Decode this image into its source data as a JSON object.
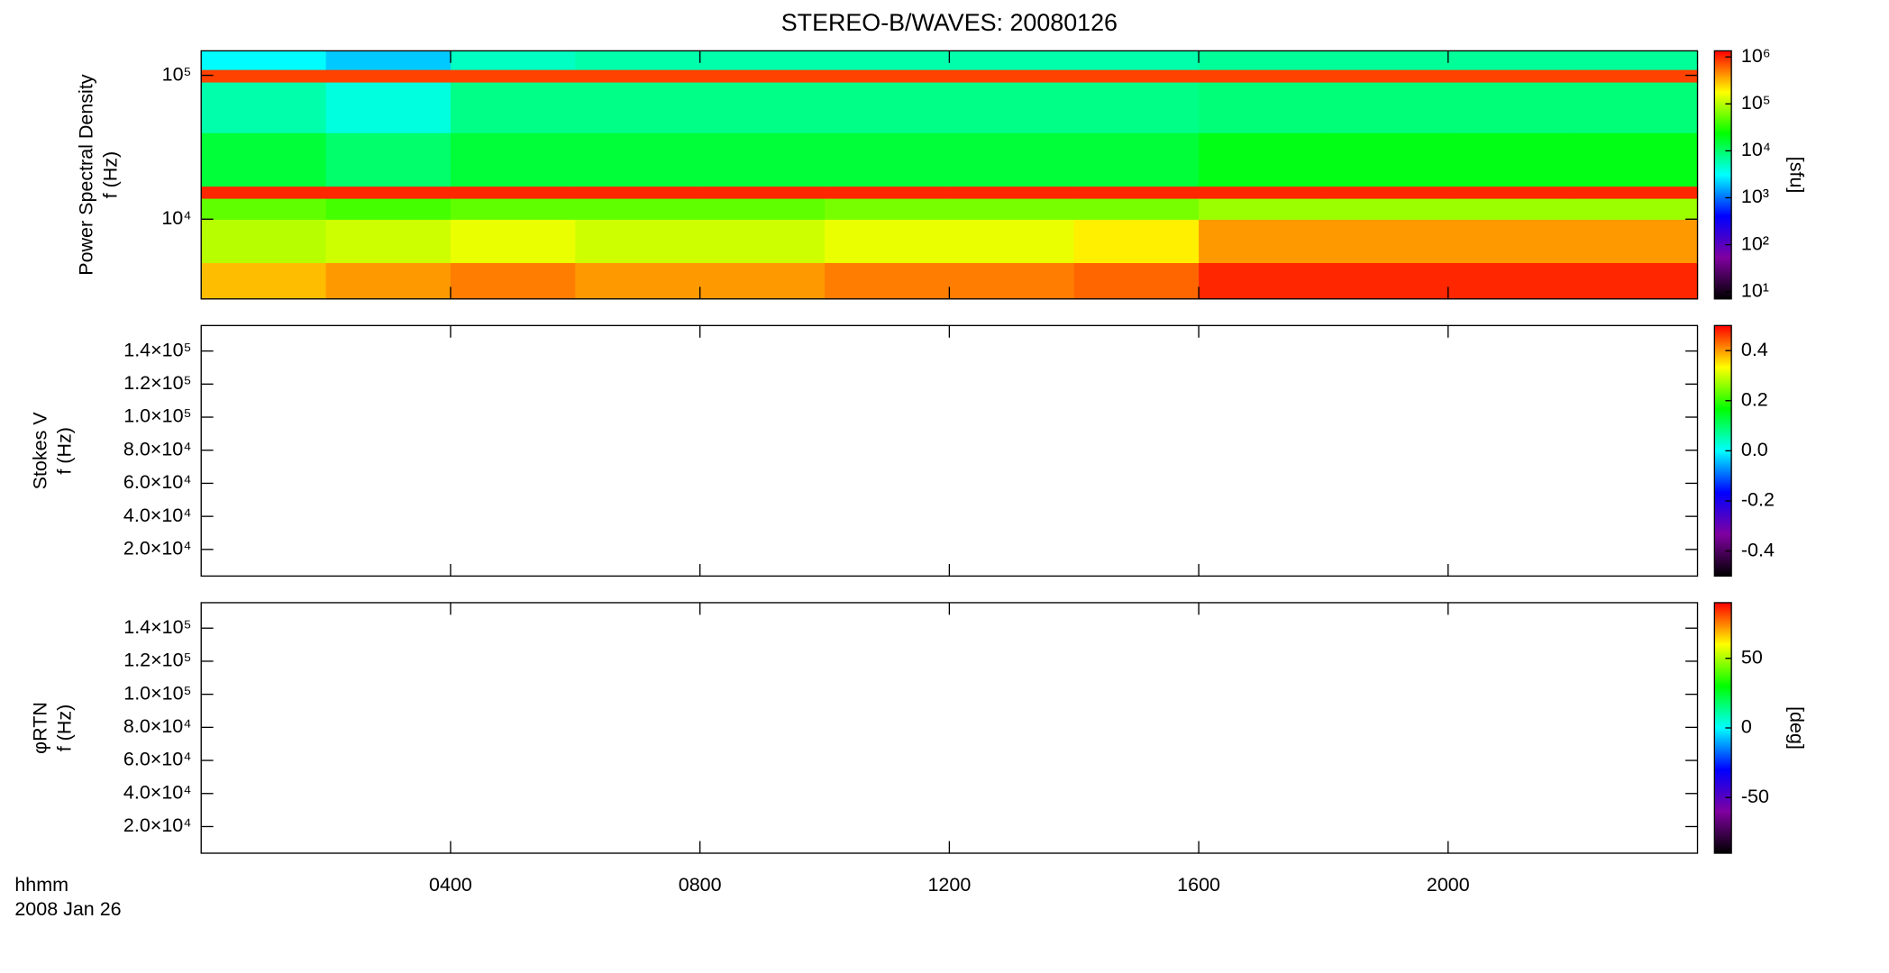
{
  "chart_data": [
    {
      "type": "heatmap",
      "title": "STEREO-B/WAVES: 20080126",
      "ylabel": [
        "Power Spectral Density",
        "f (Hz)"
      ],
      "ylog": true,
      "ylim": [
        2790,
        148000
      ],
      "yticks": [
        {
          "value": 10000,
          "label": "10⁴"
        },
        {
          "value": 100000,
          "label": "10⁵"
        }
      ],
      "x_bins": [
        0,
        2,
        4,
        6,
        8,
        10,
        12,
        14,
        16,
        18,
        20,
        22,
        24
      ],
      "y_bins": [
        2790,
        5000,
        10000,
        14000,
        17000,
        40000,
        90000,
        110000,
        148000
      ],
      "values": [
        [
          300000,
          400000,
          500000,
          400000,
          400000,
          500000,
          500000,
          600000,
          1000000,
          1000000,
          1000000,
          1000000
        ],
        [
          100000,
          120000,
          150000,
          120000,
          120000,
          150000,
          150000,
          200000,
          400000,
          400000,
          400000,
          400000
        ],
        [
          50000,
          40000,
          50000,
          50000,
          50000,
          60000,
          60000,
          60000,
          80000,
          80000,
          80000,
          80000
        ],
        [
          1000000,
          1000000,
          1000000,
          1000000,
          1000000,
          1000000,
          1000000,
          1000000,
          1000000,
          1000000,
          1000000,
          1000000
        ],
        [
          15000,
          10000,
          15000,
          15000,
          15000,
          15000,
          15000,
          15000,
          20000,
          20000,
          20000,
          20000
        ],
        [
          6000,
          4000,
          8000,
          8000,
          8000,
          8000,
          8000,
          8000,
          9000,
          9000,
          9000,
          9000
        ],
        [
          800000,
          800000,
          800000,
          800000,
          800000,
          800000,
          800000,
          800000,
          800000,
          800000,
          800000,
          800000
        ],
        [
          3000,
          2000,
          5000,
          6000,
          6000,
          6000,
          6000,
          6000,
          7000,
          7000,
          7000,
          7000
        ]
      ],
      "zlog": true,
      "zlim": [
        7,
        1350000
      ],
      "zticks": [
        {
          "value": 10,
          "label": "10¹"
        },
        {
          "value": 100,
          "label": "10²"
        },
        {
          "value": 1000,
          "label": "10³"
        },
        {
          "value": 10000,
          "label": "10⁴"
        },
        {
          "value": 100000,
          "label": "10⁵"
        },
        {
          "value": 1000000,
          "label": "10⁶"
        }
      ],
      "zlabel": "[sfu]",
      "colorscale": [
        "#000000",
        "#8000a0",
        "#0000ff",
        "#00ffff",
        "#00ff00",
        "#ffff00",
        "#ff0000"
      ]
    },
    {
      "type": "heatmap",
      "ylabel": [
        "Stokes V",
        "f (Hz)"
      ],
      "ylim": [
        3900,
        155400
      ],
      "yticks": [
        {
          "value": 20000,
          "label": "2.0×10⁴"
        },
        {
          "value": 40000,
          "label": "4.0×10⁴"
        },
        {
          "value": 60000,
          "label": "6.0×10⁴"
        },
        {
          "value": 80000,
          "label": "8.0×10⁴"
        },
        {
          "value": 100000,
          "label": "1.0×10⁵"
        },
        {
          "value": 120000,
          "label": "1.2×10⁵"
        },
        {
          "value": 140000,
          "label": "1.4×10⁵"
        }
      ],
      "zlim": [
        -0.5,
        0.5
      ],
      "zticks": [
        -0.4,
        -0.2,
        {
          "value": 0,
          "label": "0.0"
        },
        0.2,
        0.4
      ],
      "colorscale": [
        "#000000",
        "#8000a0",
        "#0000ff",
        "#00ffff",
        "#00ff00",
        "#ffff00",
        "#ff0000"
      ]
    },
    {
      "type": "heatmap",
      "ylabel": [
        "φRTN",
        "f (Hz)"
      ],
      "ylim": [
        3900,
        155400
      ],
      "yticks": [
        {
          "value": 20000,
          "label": "2.0×10⁴"
        },
        {
          "value": 40000,
          "label": "4.0×10⁴"
        },
        {
          "value": 60000,
          "label": "6.0×10⁴"
        },
        {
          "value": 80000,
          "label": "8.0×10⁴"
        },
        {
          "value": 100000,
          "label": "1.0×10⁵"
        },
        {
          "value": 120000,
          "label": "1.2×10⁵"
        },
        {
          "value": 140000,
          "label": "1.4×10⁵"
        }
      ],
      "zlim": [
        -90,
        90
      ],
      "zticks": [
        -50,
        0,
        50
      ],
      "zlabel": "[deg]",
      "colorscale": [
        "#000000",
        "#8000a0",
        "#0000ff",
        "#00ffff",
        "#00ff00",
        "#ffff00",
        "#ff0000"
      ],
      "xlabel": [
        "hhmm",
        "2008 Jan 26"
      ],
      "xlim": [
        0,
        24
      ],
      "xticks": [
        {
          "value": 4,
          "label": "0400"
        },
        {
          "value": 8,
          "label": "0800"
        },
        {
          "value": 12,
          "label": "1200"
        },
        {
          "value": 16,
          "label": "1600"
        },
        {
          "value": 20,
          "label": "2000"
        }
      ]
    }
  ]
}
